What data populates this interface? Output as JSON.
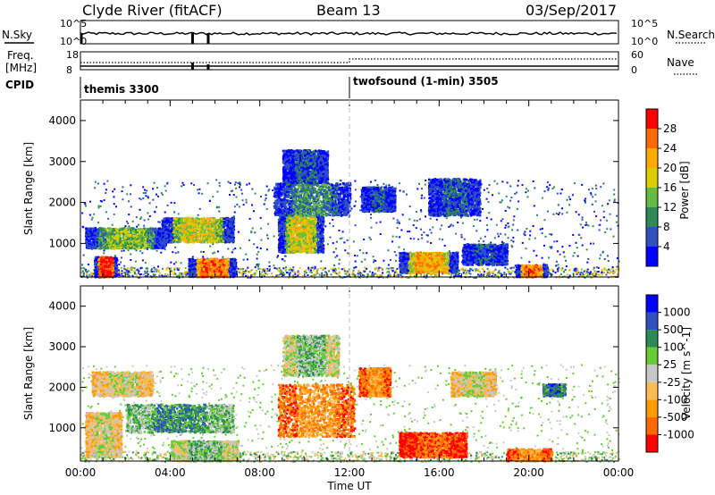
{
  "header": {
    "station": "Clyde River (fitACF)",
    "beam": "Beam 13",
    "date": "03/Sep/2017"
  },
  "top_panels": {
    "nsky_label": "N.Sky",
    "nsky_ticks": [
      "10^5",
      "10^0"
    ],
    "nsearch_label": "N.Search",
    "nsearch_ticks": [
      "10^5",
      "10^0"
    ],
    "freq_label": "Freq.",
    "freq_unit": "[MHz]",
    "freq_ticks": [
      "18",
      "8"
    ],
    "nave_label": "Nave",
    "nave_ticks": [
      "60",
      "0"
    ],
    "cpid_label": "CPID",
    "cpid_segments": [
      {
        "label": "themis 3300",
        "start_h": 0
      },
      {
        "label": "twofsound (1-min) 3505",
        "start_h": 12
      }
    ]
  },
  "chart_data": [
    {
      "type": "heatmap",
      "name": "Power",
      "ylabel": "Slant Range [km]",
      "ylim": [
        180,
        4500
      ],
      "yticks": [
        1000,
        2000,
        3000,
        4000
      ],
      "xlim": [
        0,
        24
      ],
      "colorbar_label": "Power [dB]",
      "colorbar_ticks": [
        "4",
        "8",
        "12",
        "16",
        "20",
        "24",
        "28"
      ],
      "colors": [
        "#0000ff",
        "#3050c0",
        "#2e8b57",
        "#66bb44",
        "#ddcc00",
        "#ffaa00",
        "#ff6a00",
        "#ff0000"
      ],
      "regions": [
        {
          "t0": 0.2,
          "t1": 3.8,
          "r0": 900,
          "r1": 1400,
          "level": 3
        },
        {
          "t0": 0.6,
          "t1": 1.6,
          "r0": 200,
          "r1": 700,
          "level": 7
        },
        {
          "t0": 3.6,
          "t1": 6.8,
          "r0": 1050,
          "r1": 1650,
          "level": 4
        },
        {
          "t0": 4.8,
          "t1": 6.9,
          "r0": 200,
          "r1": 650,
          "level": 6
        },
        {
          "t0": 8.8,
          "t1": 10.8,
          "r0": 800,
          "r1": 1700,
          "level": 4
        },
        {
          "t0": 8.6,
          "t1": 12.0,
          "r0": 1700,
          "r1": 2500,
          "level": 2
        },
        {
          "t0": 9.0,
          "t1": 11.0,
          "r0": 2500,
          "r1": 3300,
          "level": 1
        },
        {
          "t0": 12.5,
          "t1": 14.0,
          "r0": 1800,
          "r1": 2400,
          "level": 1
        },
        {
          "t0": 14.2,
          "t1": 16.8,
          "r0": 300,
          "r1": 800,
          "level": 5
        },
        {
          "t0": 15.5,
          "t1": 17.8,
          "r0": 1700,
          "r1": 2600,
          "level": 1
        },
        {
          "t0": 17.0,
          "t1": 19.0,
          "r0": 500,
          "r1": 1000,
          "level": 1
        },
        {
          "t0": 19.4,
          "t1": 20.8,
          "r0": 200,
          "r1": 500,
          "level": 6
        }
      ]
    },
    {
      "type": "heatmap",
      "name": "Velocity",
      "ylabel": "Slant Range [km]",
      "ylim": [
        180,
        4500
      ],
      "yticks": [
        1000,
        2000,
        3000,
        4000
      ],
      "xlim": [
        0,
        24
      ],
      "xlabel": "Time UT",
      "xticks": [
        "00:00",
        "04:00",
        "08:00",
        "12:00",
        "16:00",
        "20:00",
        "00:00"
      ],
      "colorbar_label": "Velocity [m s^-1]",
      "colorbar_ticks": [
        "-1000",
        "-500",
        "-100",
        "-25",
        "25",
        "100",
        "500",
        "1000"
      ],
      "colors": [
        "#ff0000",
        "#ff6a00",
        "#ff9a00",
        "#ffbb55",
        "#c8c8c8",
        "#66cc33",
        "#2e8b57",
        "#3050c0",
        "#0000ff"
      ],
      "regions": [
        {
          "t0": 0.2,
          "t1": 1.8,
          "r0": 300,
          "r1": 1400,
          "level": 4
        },
        {
          "t0": 0.5,
          "t1": 3.2,
          "r0": 1800,
          "r1": 2400,
          "level": 4
        },
        {
          "t0": 2.0,
          "t1": 6.8,
          "r0": 900,
          "r1": 1600,
          "level": 6
        },
        {
          "t0": 4.0,
          "t1": 7.0,
          "r0": 200,
          "r1": 700,
          "level": 5
        },
        {
          "t0": 8.8,
          "t1": 12.2,
          "r0": 800,
          "r1": 2100,
          "level": 2
        },
        {
          "t0": 9.0,
          "t1": 11.5,
          "r0": 2300,
          "r1": 3300,
          "level": 5
        },
        {
          "t0": 12.4,
          "t1": 13.8,
          "r0": 1800,
          "r1": 2500,
          "level": 2
        },
        {
          "t0": 14.2,
          "t1": 17.2,
          "r0": 300,
          "r1": 900,
          "level": 1
        },
        {
          "t0": 16.5,
          "t1": 18.5,
          "r0": 1800,
          "r1": 2400,
          "level": 4
        },
        {
          "t0": 19.0,
          "t1": 21.0,
          "r0": 200,
          "r1": 500,
          "level": 2
        },
        {
          "t0": 20.6,
          "t1": 21.6,
          "r0": 1800,
          "r1": 2100,
          "level": 7
        }
      ]
    }
  ]
}
